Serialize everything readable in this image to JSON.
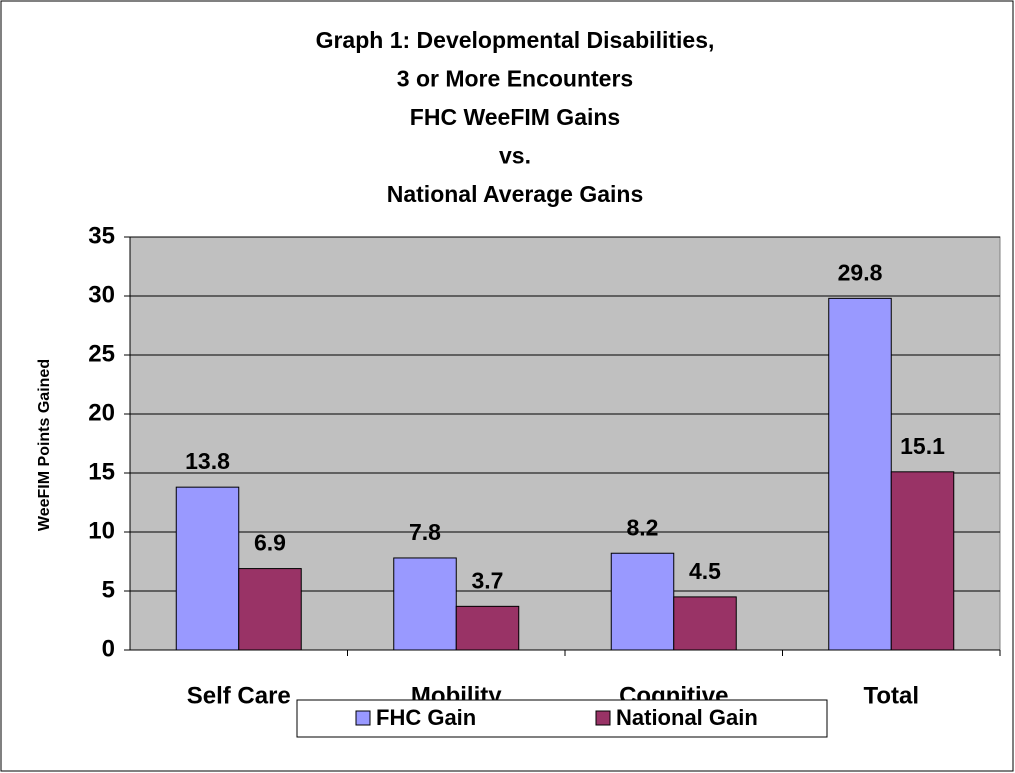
{
  "chart_data": {
    "type": "bar",
    "title": [
      "Graph 1: Developmental Disabilities,",
      "3 or More Encounters",
      "FHC WeeFIM Gains",
      "vs.",
      "National Average Gains"
    ],
    "y_label": "WeeFIM Points Gained",
    "categories": [
      "Self Care",
      "Mobility",
      "Cognitive",
      "Total"
    ],
    "series": [
      {
        "name": "FHC Gain",
        "color": "#9999ff",
        "values": [
          13.8,
          7.8,
          8.2,
          29.8
        ]
      },
      {
        "name": "National Gain",
        "color": "#993366",
        "values": [
          6.9,
          3.7,
          4.5,
          15.1
        ]
      }
    ],
    "ylim": [
      0,
      35
    ],
    "yticks": [
      0,
      5,
      10,
      15,
      20,
      25,
      30,
      35
    ],
    "grid": true,
    "legend": "bottom"
  }
}
